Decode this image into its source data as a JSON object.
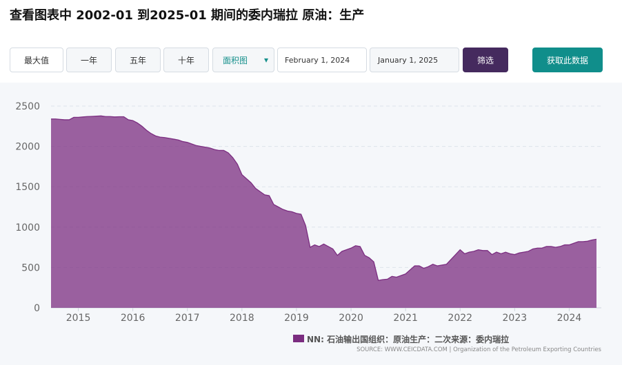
{
  "header": {
    "title": "查看图表中 2002-01 到2025-01 期间的委内瑞拉 原油：生产"
  },
  "controls": {
    "ranges": [
      "最大值",
      "一年",
      "五年",
      "十年"
    ],
    "chart_type": "面积图",
    "start_date": "February 1, 2024",
    "end_date": "January 1, 2025",
    "filter": "筛选",
    "get_data": "获取此数据"
  },
  "chart_data": {
    "type": "area",
    "categories": [
      null,
      null,
      null,
      null,
      null,
      null,
      "2015",
      null,
      null,
      null,
      null,
      null,
      null,
      null,
      null,
      null,
      null,
      null,
      "2016",
      null,
      null,
      null,
      null,
      null,
      null,
      null,
      null,
      null,
      null,
      null,
      "2017",
      null,
      null,
      null,
      null,
      null,
      null,
      null,
      null,
      null,
      null,
      null,
      "2018",
      null,
      null,
      null,
      null,
      null,
      null,
      null,
      null,
      null,
      null,
      null,
      "2019",
      null,
      null,
      null,
      null,
      null,
      null,
      null,
      null,
      null,
      null,
      null,
      "2020",
      null,
      null,
      null,
      null,
      null,
      null,
      null,
      null,
      null,
      null,
      null,
      "2021",
      null,
      null,
      null,
      null,
      null,
      null,
      null,
      null,
      null,
      null,
      null,
      "2022",
      null,
      null,
      null,
      null,
      null,
      null,
      null,
      null,
      null,
      null,
      null,
      "2023",
      null,
      null,
      null,
      null,
      null,
      null,
      null,
      null,
      null,
      null,
      null,
      "2024",
      null,
      null,
      null,
      null,
      null,
      null
    ],
    "series": [
      {
        "name": "NN: 石油输出国组织：原油生产：二次来源：委内瑞拉",
        "color": "#7b2d80",
        "values": [
          2340,
          2340,
          2335,
          2330,
          2330,
          2360,
          2360,
          2365,
          2370,
          2372,
          2375,
          2378,
          2370,
          2370,
          2365,
          2368,
          2368,
          2330,
          2320,
          2290,
          2250,
          2200,
          2160,
          2130,
          2115,
          2110,
          2100,
          2090,
          2080,
          2060,
          2050,
          2030,
          2010,
          2000,
          1990,
          1980,
          1960,
          1950,
          1950,
          1920,
          1860,
          1780,
          1650,
          1600,
          1550,
          1480,
          1440,
          1400,
          1390,
          1280,
          1250,
          1220,
          1200,
          1190,
          1170,
          1160,
          1020,
          750,
          780,
          760,
          790,
          760,
          730,
          650,
          700,
          720,
          740,
          770,
          760,
          650,
          620,
          570,
          340,
          350,
          355,
          390,
          380,
          400,
          420,
          470,
          520,
          520,
          490,
          510,
          540,
          520,
          530,
          540,
          600,
          660,
          720,
          670,
          690,
          700,
          720,
          710,
          710,
          660,
          690,
          670,
          690,
          670,
          660,
          680,
          690,
          700,
          730,
          740,
          740,
          760,
          760,
          750,
          760,
          780,
          780,
          800,
          820,
          820,
          825,
          840,
          850
        ]
      }
    ],
    "ylim": [
      0,
      2500
    ],
    "yticks": [
      0,
      500,
      1000,
      1500,
      2000,
      2500
    ],
    "grid": true,
    "source": "SOURCE: WWW.CEICDATA.COM | Organization of the Petroleum Exporting Countries"
  }
}
